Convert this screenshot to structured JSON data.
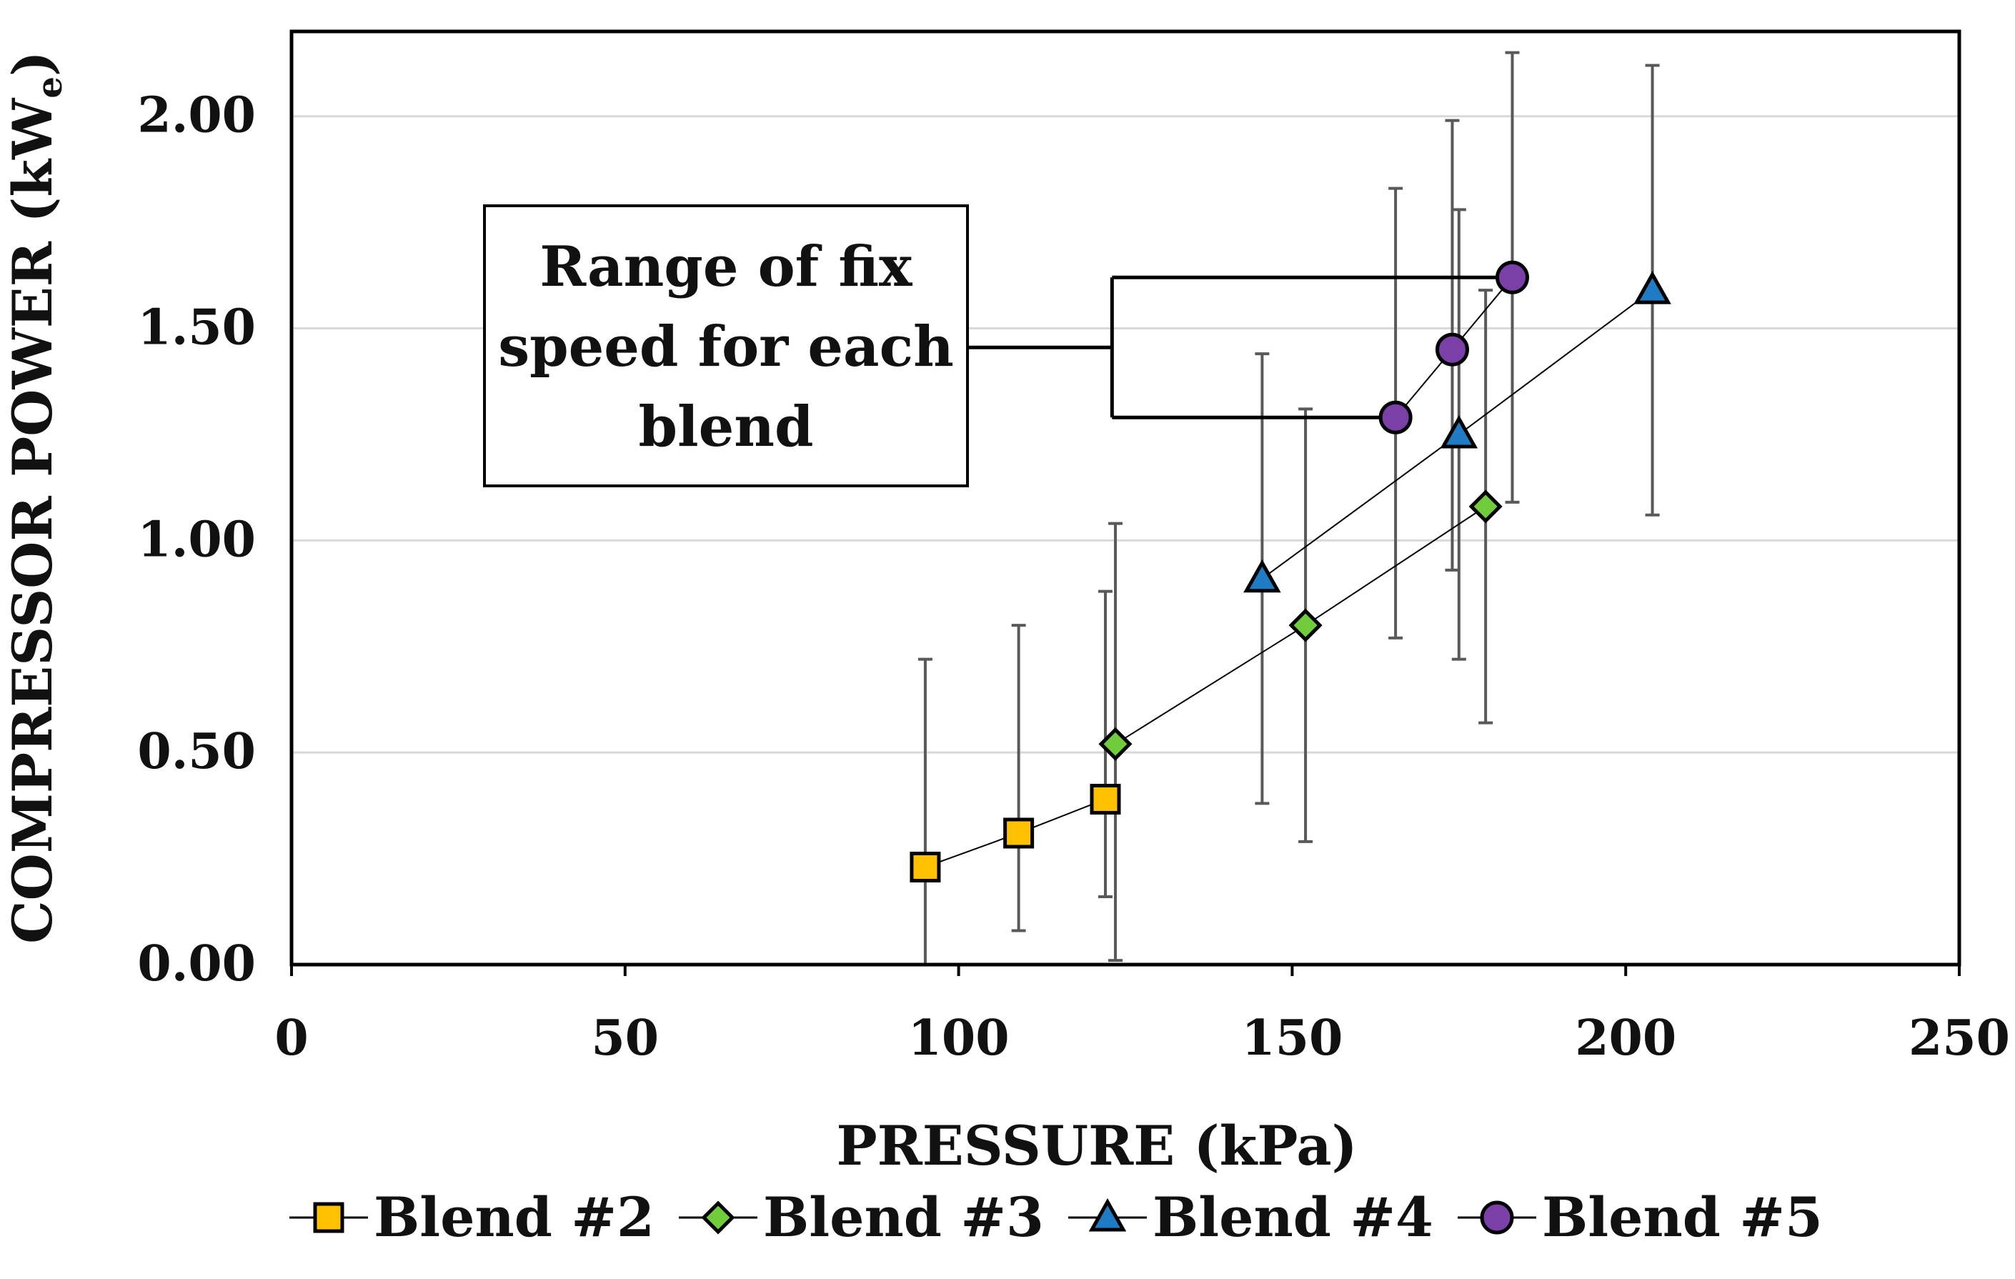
{
  "chart_data": {
    "type": "scatter",
    "title": "",
    "xlabel": "PRESSURE (kPa)",
    "ylabel": "COMPRESSOR POWER (kW",
    "ylabel_subscript": "e",
    "ylabel_close": ")",
    "xlim": [
      0,
      250
    ],
    "ylim": [
      0,
      2.2
    ],
    "x_ticks": [
      0,
      50,
      100,
      150,
      200,
      250
    ],
    "x_tick_labels": [
      "0",
      "50",
      "100",
      "150",
      "200",
      "250"
    ],
    "y_ticks": [
      0,
      0.5,
      1.0,
      1.5,
      2.0
    ],
    "y_tick_labels": [
      "0.00",
      "0.50",
      "1.00",
      "1.50",
      "2.00"
    ],
    "grid": "horizontal",
    "legend_position": "bottom",
    "series": [
      {
        "name": "Blend #2",
        "marker": "square",
        "color": "#FFC000",
        "x": [
          95,
          109,
          122
        ],
        "y": [
          0.23,
          0.31,
          0.39
        ],
        "err_low": [
          0.0,
          0.08,
          0.16
        ],
        "err_high": [
          0.72,
          0.8,
          0.88
        ]
      },
      {
        "name": "Blend #3",
        "marker": "diamond",
        "color": "#70CC3A",
        "x": [
          123.5,
          152,
          179
        ],
        "y": [
          0.52,
          0.8,
          1.08
        ],
        "err_low": [
          0.01,
          0.29,
          0.57
        ],
        "err_high": [
          1.04,
          1.31,
          1.59
        ]
      },
      {
        "name": "Blend #4",
        "marker": "triangle",
        "color": "#1F7BC4",
        "x": [
          145.5,
          175,
          204
        ],
        "y": [
          0.91,
          1.25,
          1.59
        ],
        "err_low": [
          0.38,
          0.72,
          1.06
        ],
        "err_high": [
          1.44,
          1.78,
          2.12
        ]
      },
      {
        "name": "Blend #5",
        "marker": "circle",
        "color": "#7B3FA8",
        "x": [
          165.5,
          174,
          183
        ],
        "y": [
          1.29,
          1.45,
          1.62
        ],
        "err_low": [
          0.77,
          0.93,
          1.09
        ],
        "err_high": [
          1.83,
          1.99,
          2.15
        ]
      }
    ],
    "annotation": {
      "lines": [
        "Range of fix",
        "speed for each",
        "blend"
      ],
      "bracket_y_top": 1.62,
      "bracket_y_bottom": 1.29,
      "bracket_x": 123,
      "bracket_x_end_top": 183,
      "bracket_x_end_bottom": 165.5
    }
  },
  "colors": {
    "axis": "#000000",
    "grid": "#D9D9D9",
    "errorbar": "#595959",
    "series_line": "#000000"
  }
}
